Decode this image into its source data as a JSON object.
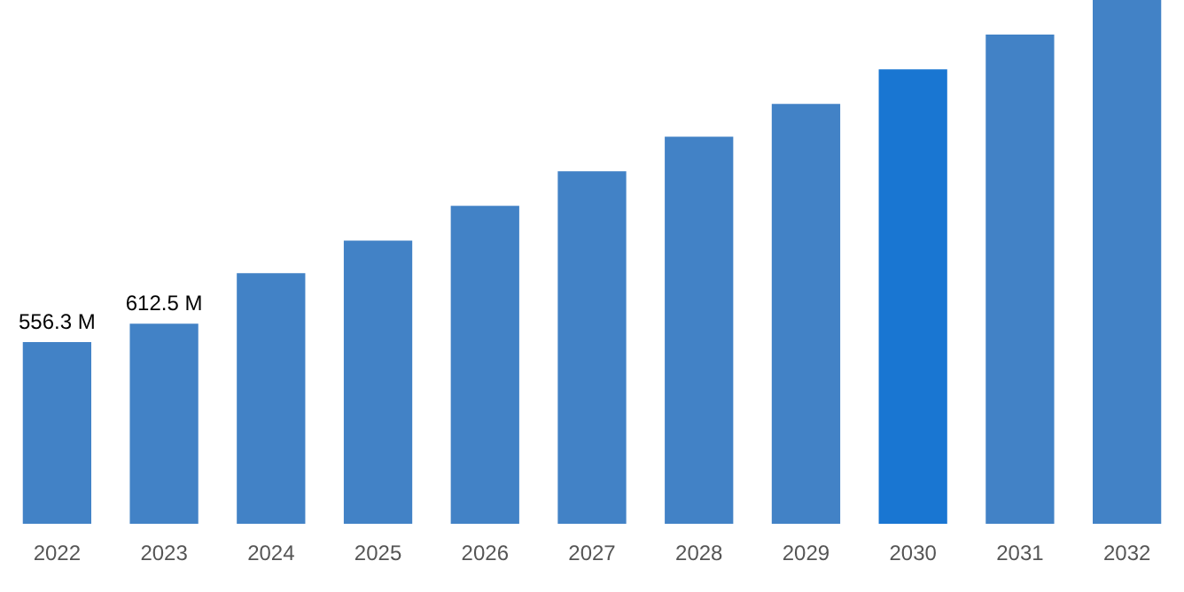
{
  "chart_data": {
    "type": "bar",
    "categories": [
      "2022",
      "2023",
      "2024",
      "2025",
      "2026",
      "2027",
      "2028",
      "2029",
      "2030",
      "2031",
      "2032"
    ],
    "values": [
      556.3,
      612.5,
      767,
      867,
      973,
      1079,
      1185,
      1285,
      1391,
      1497,
      1603
    ],
    "colors": [
      "#4282c6",
      "#4282c6",
      "#4282c6",
      "#4282c6",
      "#4282c6",
      "#4282c6",
      "#4282c6",
      "#4282c6",
      "#1976d2",
      "#4282c6",
      "#4282c6"
    ],
    "value_labels": [
      "556.3 M",
      "612.5 M",
      null,
      null,
      null,
      null,
      null,
      null,
      null,
      null,
      null
    ],
    "grid": false,
    "legend": false
  }
}
